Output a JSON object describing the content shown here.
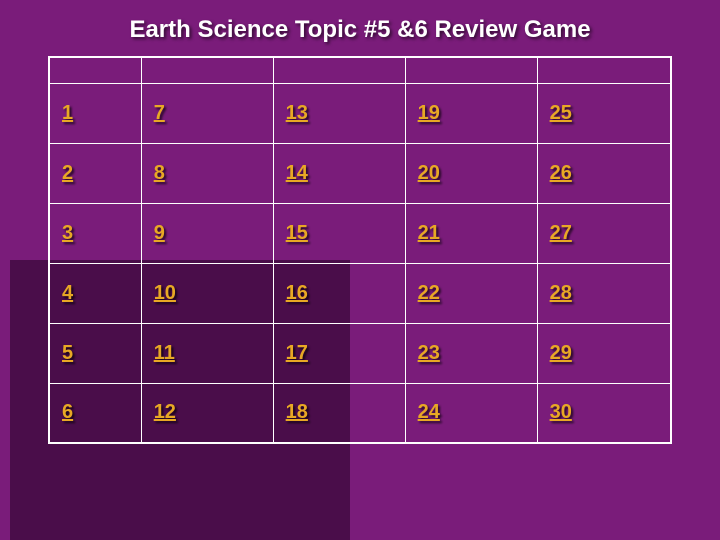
{
  "title": "Earth Science Topic #5 &6 Review Game",
  "colors": {
    "background": "#7a1c7a",
    "back_shape": "#4a0d4a",
    "title_text": "#ffffff",
    "border": "#ffffff",
    "link": "#e8a824"
  },
  "grid": {
    "columns": 5,
    "header_row_empty": true,
    "rows": [
      [
        {
          "label": "1"
        },
        {
          "label": "7"
        },
        {
          "label": "13"
        },
        {
          "label": "19"
        },
        {
          "label": "25"
        }
      ],
      [
        {
          "label": "2"
        },
        {
          "label": "8"
        },
        {
          "label": "14"
        },
        {
          "label": "20"
        },
        {
          "label": "26"
        }
      ],
      [
        {
          "label": "3"
        },
        {
          "label": "9"
        },
        {
          "label": "15"
        },
        {
          "label": "21"
        },
        {
          "label": "27"
        }
      ],
      [
        {
          "label": "4"
        },
        {
          "label": "10"
        },
        {
          "label": "16"
        },
        {
          "label": "22"
        },
        {
          "label": "28"
        }
      ],
      [
        {
          "label": "5"
        },
        {
          "label": "11"
        },
        {
          "label": "17"
        },
        {
          "label": "23"
        },
        {
          "label": "29"
        }
      ],
      [
        {
          "label": "6"
        },
        {
          "label": "12"
        },
        {
          "label": "18"
        },
        {
          "label": "24"
        },
        {
          "label": "30"
        }
      ]
    ]
  },
  "typography": {
    "title_fontsize": 24,
    "link_fontsize": 20,
    "font_family": "Tahoma"
  }
}
